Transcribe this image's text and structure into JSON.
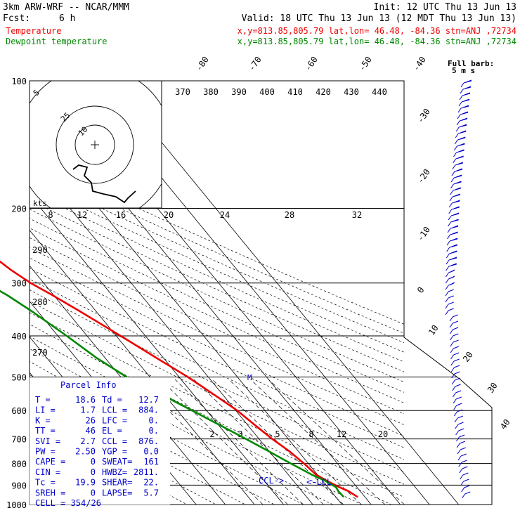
{
  "header": {
    "model": "3km ARW-WRF -- NCAR/MMM",
    "init": "Init: 12 UTC Thu 13 Jun 13",
    "fcst_label": "Fcst:",
    "fcst_value": "6 h",
    "valid": "Valid: 18 UTC Thu 13 Jun 13 (12 MDT Thu 13 Jun 13)",
    "temp_label": "Temperature",
    "temp_info": "x,y=813.85,805.79   lat,lon= 46.48, -84.36  stn=ANJ ,72734",
    "dew_label": "Dewpoint temperature",
    "dew_info": "x,y=813.85,805.79   lat,lon= 46.48, -84.36  stn=ANJ ,72734"
  },
  "colors": {
    "temperature": "#ee0000",
    "dewpoint": "#008800",
    "parcel_text": "#0000cc",
    "hodograph": "#000000",
    "grid": "#000000"
  },
  "parcel": {
    "title": "Parcel Info",
    "rows": [
      [
        "T   =",
        "18.6",
        "Td  =",
        "12.7"
      ],
      [
        "LI  =",
        "1.7",
        "LCL =",
        "884."
      ],
      [
        "K   =",
        "26",
        "LFC =",
        "0."
      ],
      [
        "TT  =",
        "46",
        "EL  =",
        "0."
      ],
      [
        "SVI =",
        "2.7",
        "CCL =",
        "876."
      ],
      [
        "PW  =",
        "2.50",
        "YGP =",
        "0.0"
      ],
      [
        "CAPE =",
        "0",
        "SWEAT=",
        "161"
      ],
      [
        "CIN  =",
        "0",
        "HWBZ=",
        "2811."
      ],
      [
        "Tc   =",
        "19.9",
        "SHEAR=",
        "22."
      ],
      [
        "SREH =",
        "0",
        "LAPSE=",
        "5.7"
      ],
      [
        "CELL = 354/26",
        "",
        "",
        ""
      ]
    ]
  },
  "annotations": {
    "ccl": "CCL->",
    "lcl": "<-LCL",
    "barb_title": "Full barb:",
    "barb_unit": "5 m s",
    "kts": "kts"
  },
  "chart_data": {
    "type": "line",
    "subtype": "skew-t log-p",
    "y_axis": {
      "label": "pressure (hPa)",
      "scale": "log",
      "range": [
        1000,
        100
      ],
      "ticks": [
        100,
        200,
        300,
        400,
        500,
        600,
        700,
        800,
        900,
        1000
      ]
    },
    "isotherm_labels": [
      "-80",
      "-70",
      "-60",
      "-50",
      "-40",
      "-30",
      "-20",
      "-10",
      "0",
      "10",
      "20",
      "30",
      "40"
    ],
    "theta_e_labels": [
      "370",
      "380",
      "390",
      "400",
      "410",
      "420",
      "430",
      "440"
    ],
    "mixing_ratio_labels": [
      "2",
      "3",
      "5",
      "8",
      "12",
      "20"
    ],
    "mixing_ratio_labels_upper": [
      "8",
      "12",
      "16",
      "20",
      "24",
      "28",
      "32"
    ],
    "dry_adiabat_labels": [
      "290",
      "280",
      "270"
    ],
    "hodograph_rings": [
      "5",
      "10",
      "25"
    ],
    "series": [
      {
        "name": "Temperature",
        "pressure": [
          960,
          930,
          910,
          880,
          850,
          800,
          750,
          700,
          650,
          600,
          550,
          500,
          450,
          400,
          350,
          320,
          300,
          280,
          250,
          220,
          200,
          180,
          160,
          150,
          130,
          115,
          100
        ],
        "values": [
          17.5,
          16,
          14,
          11.5,
          9.5,
          8.5,
          7.0,
          4.5,
          2.5,
          0.5,
          -3,
          -7,
          -12.5,
          -18.5,
          -25.5,
          -30.5,
          -34.5,
          -37.5,
          -41,
          -45,
          -48,
          -51,
          -54.5,
          -56,
          -58.5,
          -60,
          -61
        ]
      },
      {
        "name": "Dewpoint temperature",
        "pressure": [
          960,
          930,
          910,
          880,
          850,
          800,
          750,
          700,
          650,
          600,
          550,
          500,
          450,
          400,
          350,
          320,
          300,
          280,
          250,
          220,
          200,
          180,
          160,
          150,
          130,
          115,
          100
        ],
        "values": [
          12.7,
          12.5,
          12.8,
          11.0,
          8.0,
          4.0,
          0.0,
          -4.5,
          -9.5,
          -15,
          -21,
          -28,
          -33,
          -37,
          -42,
          -46,
          -50,
          -52,
          -55,
          -58,
          -61,
          -64,
          -67,
          -69,
          -72,
          -75,
          -78
        ]
      }
    ]
  }
}
